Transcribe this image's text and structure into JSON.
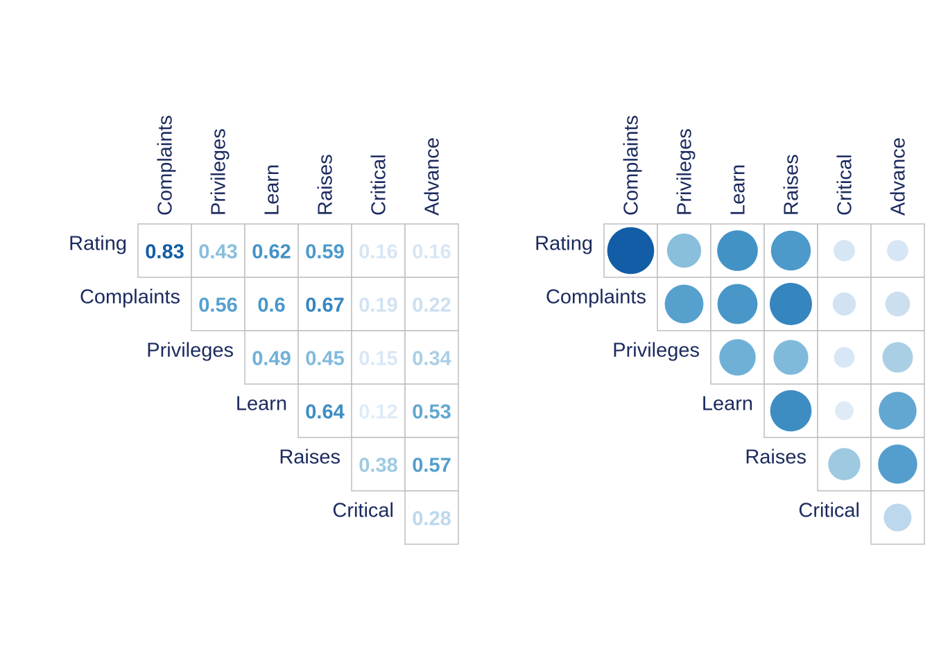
{
  "chart_data": [
    {
      "type": "heatmap",
      "style": "number",
      "row_labels": [
        "Rating",
        "Complaints",
        "Privileges",
        "Learn",
        "Raises",
        "Critical"
      ],
      "col_labels": [
        "Complaints",
        "Privileges",
        "Learn",
        "Raises",
        "Critical",
        "Advance"
      ],
      "values": [
        [
          0.83,
          0.43,
          0.62,
          0.59,
          0.16,
          0.16
        ],
        [
          null,
          0.56,
          0.6,
          0.67,
          0.19,
          0.22
        ],
        [
          null,
          null,
          0.49,
          0.45,
          0.15,
          0.34
        ],
        [
          null,
          null,
          null,
          0.64,
          0.12,
          0.53
        ],
        [
          null,
          null,
          null,
          null,
          0.38,
          0.57
        ],
        [
          null,
          null,
          null,
          null,
          null,
          0.28
        ]
      ],
      "display": [
        [
          "0.83",
          "0.43",
          "0.62",
          "0.59",
          "0.16",
          "0.16"
        ],
        [
          null,
          "0.56",
          "0.6",
          "0.67",
          "0.19",
          "0.22"
        ],
        [
          null,
          null,
          "0.49",
          "0.45",
          "0.15",
          "0.34"
        ],
        [
          null,
          null,
          null,
          "0.64",
          "0.12",
          "0.53"
        ],
        [
          null,
          null,
          null,
          null,
          "0.38",
          "0.57"
        ],
        [
          null,
          null,
          null,
          null,
          null,
          "0.28"
        ]
      ],
      "layout": "upper-triangle",
      "color_scale": "Blues"
    },
    {
      "type": "heatmap",
      "style": "circle",
      "row_labels": [
        "Rating",
        "Complaints",
        "Privileges",
        "Learn",
        "Raises",
        "Critical"
      ],
      "col_labels": [
        "Complaints",
        "Privileges",
        "Learn",
        "Raises",
        "Critical",
        "Advance"
      ],
      "values": [
        [
          0.83,
          0.43,
          0.62,
          0.59,
          0.16,
          0.16
        ],
        [
          null,
          0.56,
          0.6,
          0.67,
          0.19,
          0.22
        ],
        [
          null,
          null,
          0.49,
          0.45,
          0.15,
          0.34
        ],
        [
          null,
          null,
          null,
          0.64,
          0.12,
          0.53
        ],
        [
          null,
          null,
          null,
          null,
          0.38,
          0.57
        ],
        [
          null,
          null,
          null,
          null,
          null,
          0.28
        ]
      ],
      "layout": "upper-triangle",
      "color_scale": "Blues"
    }
  ],
  "colors": {
    "label": "#1b2a5e",
    "grid": "#bdbdbd"
  }
}
